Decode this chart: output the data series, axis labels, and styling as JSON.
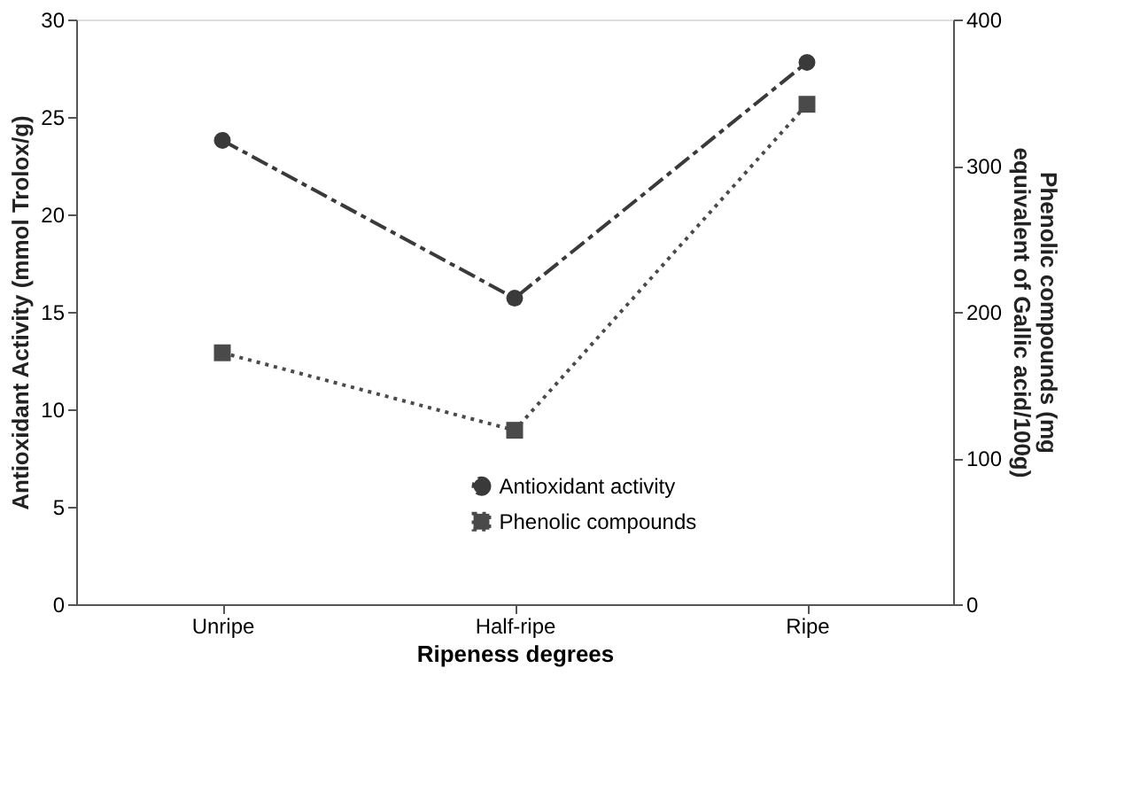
{
  "chart_data": {
    "type": "line",
    "xlabel": "Ripeness degrees",
    "ylabel": "Antioxidant Activity (mmol Trolox/g)",
    "y2label": "Phenolic compounds (mg equivalent of Gallic acid/100g)",
    "categories": [
      "Unripe",
      "Half-ripe",
      "Ripe"
    ],
    "series": [
      {
        "name": "Antioxidant activity",
        "color": "#3a3a3a",
        "values": [
          23.8,
          15.7,
          27.8
        ],
        "marker": "circle",
        "line_style": "dashed"
      },
      {
        "name": "Phenolic compounds",
        "color": "#4a4a4a",
        "values": [
          172,
          119,
          342
        ],
        "marker": "square",
        "line_style": "dotted",
        "axis": "y2"
      }
    ],
    "ylim": [
      0,
      30
    ],
    "yticks": [
      0,
      5,
      10,
      15,
      20,
      25,
      30
    ],
    "y2lim": [
      0,
      400
    ],
    "y2ticks": [
      0,
      100,
      200,
      300,
      400
    ],
    "legend": "bottom",
    "grid": false
  }
}
